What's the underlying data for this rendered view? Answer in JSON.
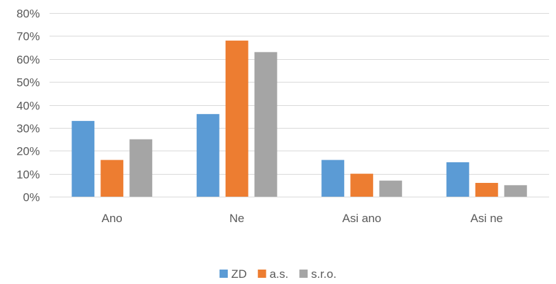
{
  "chart_data": {
    "type": "bar",
    "categories": [
      "Ano",
      "Ne",
      "Asi ano",
      "Asi ne"
    ],
    "series": [
      {
        "name": "ZD",
        "color": "#5b9bd5",
        "values": [
          33,
          36,
          16,
          15
        ]
      },
      {
        "name": "a.s.",
        "color": "#ed7d31",
        "values": [
          16,
          68,
          10,
          6
        ]
      },
      {
        "name": "s.r.o.",
        "color": "#a5a5a5",
        "values": [
          25,
          63,
          7,
          5
        ]
      }
    ],
    "y_unit": "%",
    "ylim": [
      0,
      80
    ],
    "y_ticks": [
      "0%",
      "10%",
      "20%",
      "30%",
      "40%",
      "50%",
      "60%",
      "70%",
      "80%"
    ],
    "grid": true,
    "legend_position": "bottom"
  }
}
